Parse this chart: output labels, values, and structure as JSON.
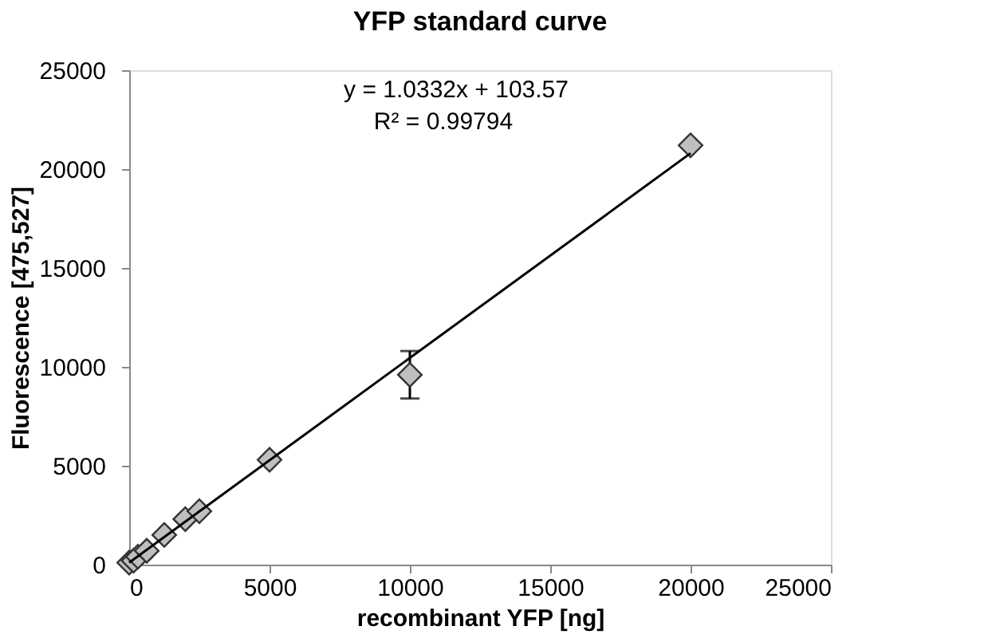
{
  "chart_data": {
    "type": "scatter",
    "title": "YFP standard curve",
    "xlabel": "recombinant YFP [ng]",
    "ylabel": "Fluorescence [475,527]",
    "xlim": [
      0,
      25000
    ],
    "xticks": [
      0,
      5000,
      10000,
      15000,
      20000,
      25000
    ],
    "ylim": [
      0,
      25000
    ],
    "yticks": [
      0,
      5000,
      10000,
      15000,
      20000,
      25000
    ],
    "grid": false,
    "marker": "diamond",
    "series": [
      {
        "color": "#bfbfbf",
        "x": [
          0,
          156,
          312,
          625,
          1250,
          2000,
          2500,
          5000,
          10000,
          20000
        ],
        "values": [
          100,
          200,
          400,
          700,
          1500,
          2300,
          2700,
          5300,
          9600,
          21200
        ],
        "errors": [
          null,
          null,
          null,
          null,
          null,
          null,
          null,
          null,
          1200,
          null
        ]
      },
      {
        "type": "line",
        "color": "#000000",
        "x": [
          0,
          20000
        ],
        "values": [
          100,
          20800
        ],
        "marker": "none"
      }
    ],
    "annotations": [
      "y = 1.0332x + 103.57",
      "R² = 0.99794"
    ]
  }
}
